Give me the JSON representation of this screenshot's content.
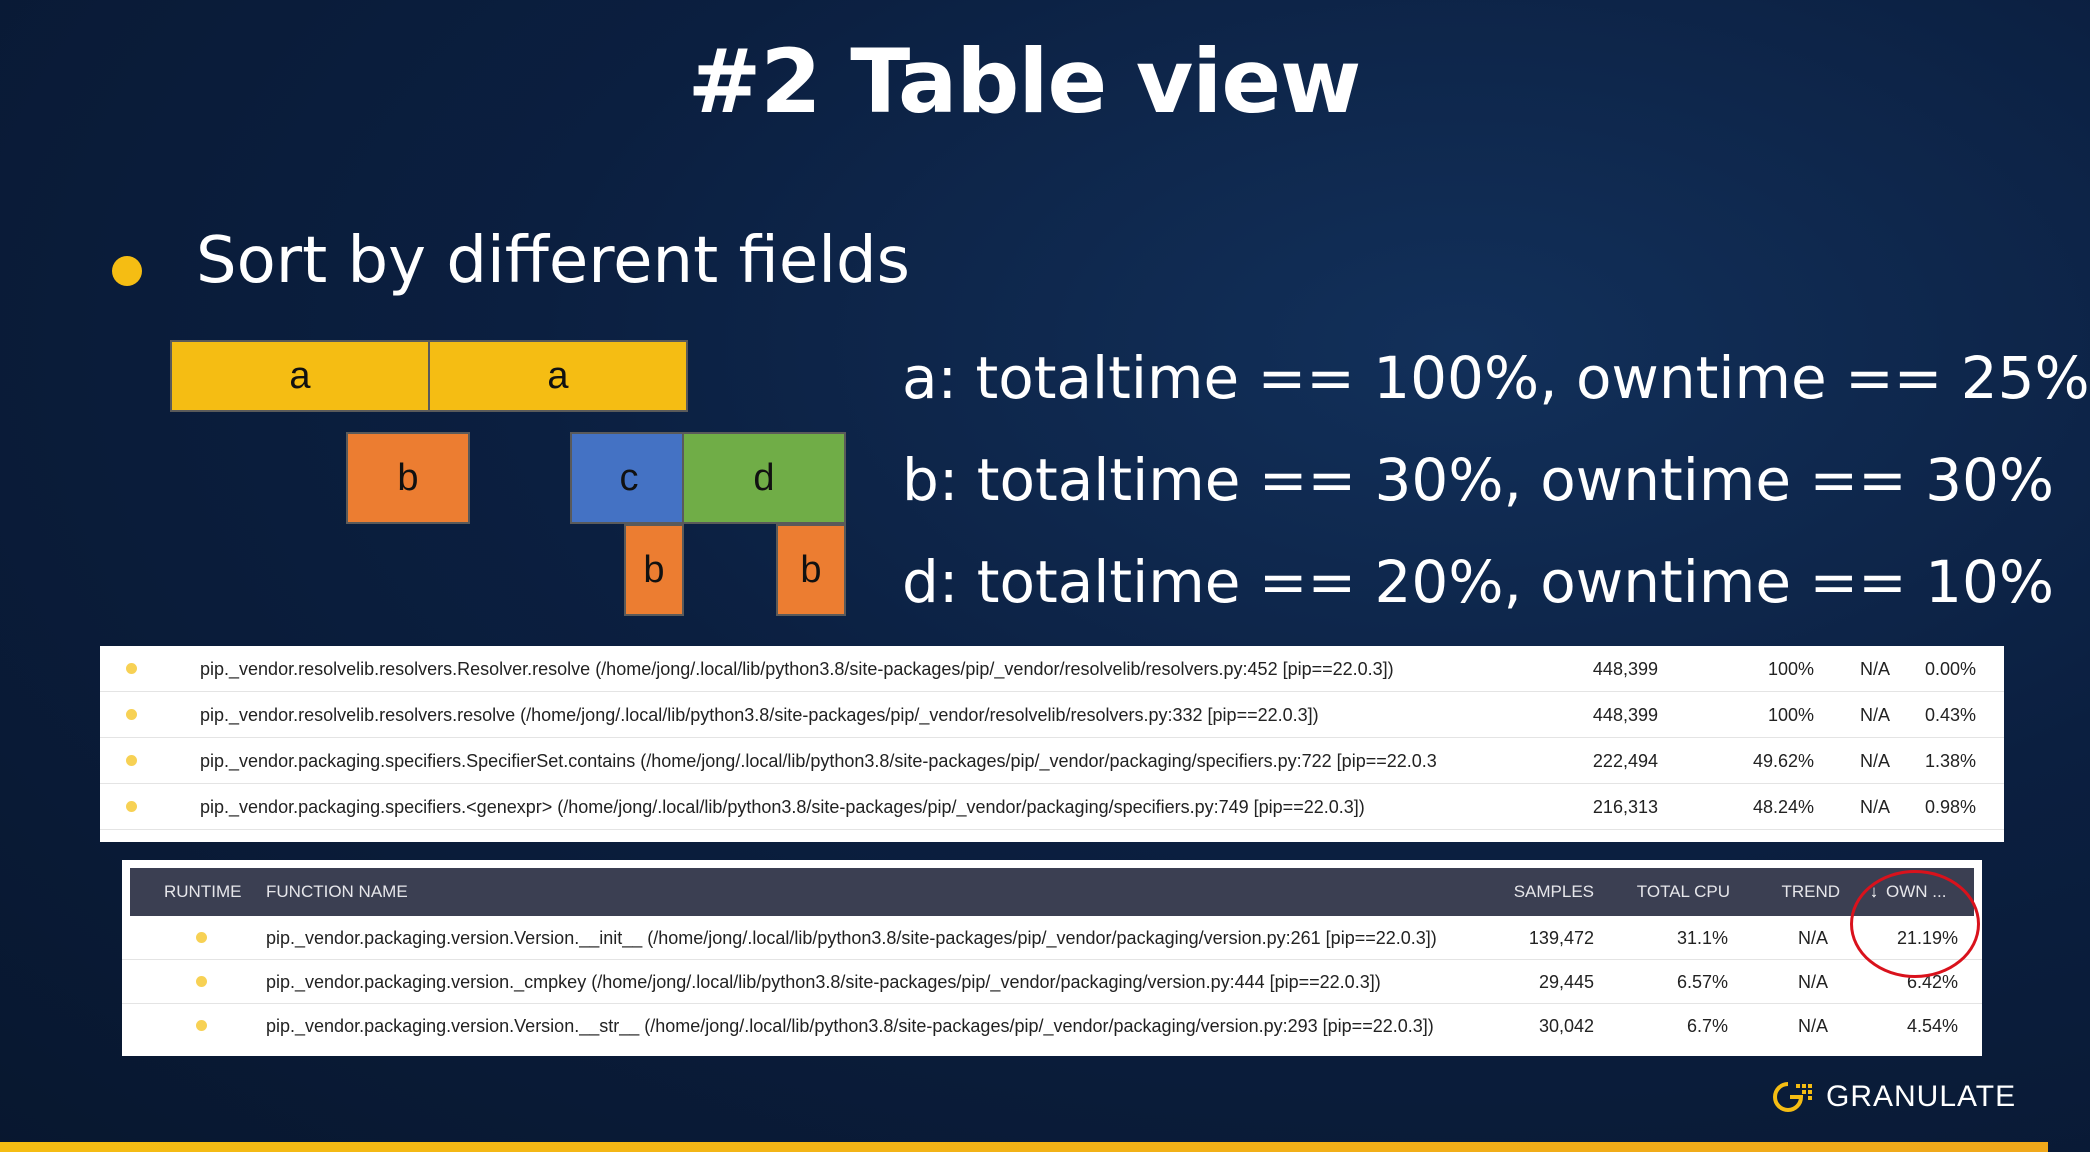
{
  "slide": {
    "title": "#2 Table view",
    "bullet": "Sort by different fields"
  },
  "flamegraph": {
    "blocks": [
      "a",
      "a",
      "b",
      "c",
      "d",
      "b",
      "b"
    ]
  },
  "statements": [
    "a: totaltime == 100%, owntime == 25%",
    "b: totaltime == 30%, owntime == 30%",
    "d: totaltime == 20%, owntime == 10%"
  ],
  "table1": {
    "rows": [
      {
        "function": "pip._vendor.resolvelib.resolvers.Resolver.resolve (/home/jong/.local/lib/python3.8/site-packages/pip/_vendor/resolvelib/resolvers.py:452 [pip==22.0.3])",
        "samples": "448,399",
        "total_cpu": "100%",
        "trend": "N/A",
        "own": "0.00%"
      },
      {
        "function": "pip._vendor.resolvelib.resolvers.resolve (/home/jong/.local/lib/python3.8/site-packages/pip/_vendor/resolvelib/resolvers.py:332 [pip==22.0.3])",
        "samples": "448,399",
        "total_cpu": "100%",
        "trend": "N/A",
        "own": "0.43%"
      },
      {
        "function": "pip._vendor.packaging.specifiers.SpecifierSet.contains (/home/jong/.local/lib/python3.8/site-packages/pip/_vendor/packaging/specifiers.py:722 [pip==22.0.3",
        "samples": "222,494",
        "total_cpu": "49.62%",
        "trend": "N/A",
        "own": "1.38%"
      },
      {
        "function": "pip._vendor.packaging.specifiers.<genexpr> (/home/jong/.local/lib/python3.8/site-packages/pip/_vendor/packaging/specifiers.py:749 [pip==22.0.3])",
        "samples": "216,313",
        "total_cpu": "48.24%",
        "trend": "N/A",
        "own": "0.98%"
      }
    ]
  },
  "table2": {
    "headers": {
      "runtime": "RUNTIME",
      "function": "FUNCTION NAME",
      "samples": "SAMPLES",
      "total_cpu": "TOTAL CPU",
      "trend": "TREND",
      "own": "OWN ..."
    },
    "rows": [
      {
        "function": "pip._vendor.packaging.version.Version.__init__ (/home/jong/.local/lib/python3.8/site-packages/pip/_vendor/packaging/version.py:261 [pip==22.0.3])",
        "samples": "139,472",
        "total_cpu": "31.1%",
        "trend": "N/A",
        "own": "21.19%"
      },
      {
        "function": "pip._vendor.packaging.version._cmpkey (/home/jong/.local/lib/python3.8/site-packages/pip/_vendor/packaging/version.py:444 [pip==22.0.3])",
        "samples": "29,445",
        "total_cpu": "6.57%",
        "trend": "N/A",
        "own": "6.42%"
      },
      {
        "function": "pip._vendor.packaging.version.Version.__str__ (/home/jong/.local/lib/python3.8/site-packages/pip/_vendor/packaging/version.py:293 [pip==22.0.3])",
        "samples": "30,042",
        "total_cpu": "6.7%",
        "trend": "N/A",
        "own": "4.54%"
      }
    ]
  },
  "branding": {
    "logo_text": "GRANULATE",
    "accent_color": "#f5bd13"
  }
}
